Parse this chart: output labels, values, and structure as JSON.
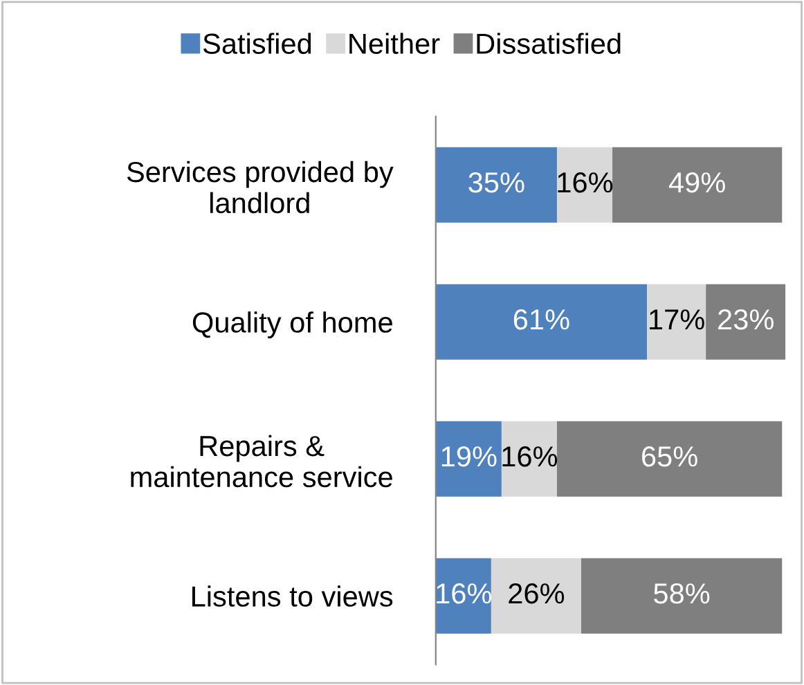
{
  "chart_data": {
    "type": "bar",
    "orientation": "horizontal",
    "stacked": true,
    "legend": "top",
    "grid": false,
    "tick_labels": "y",
    "xlim": [
      0,
      101
    ],
    "categories": [
      "Services provided by\nlandlord",
      "Quality of home",
      "Repairs &\nmaintenance service",
      "Listens to views"
    ],
    "series": [
      {
        "name": "Satisfied",
        "color": "#4f81bd",
        "values": [
          35,
          61,
          19,
          16
        ],
        "value_labels": [
          "35%",
          "61%",
          "19%",
          "16%"
        ]
      },
      {
        "name": "Neither",
        "color": "#d9d9d9",
        "values": [
          16,
          17,
          16,
          26
        ],
        "value_labels": [
          "16%",
          "17%",
          "16%",
          "26%"
        ]
      },
      {
        "name": "Dissatisfied",
        "color": "#7f7f7f",
        "values": [
          49,
          23,
          65,
          58
        ],
        "value_labels": [
          "49%",
          "23%",
          "65%",
          "58%"
        ]
      }
    ]
  }
}
